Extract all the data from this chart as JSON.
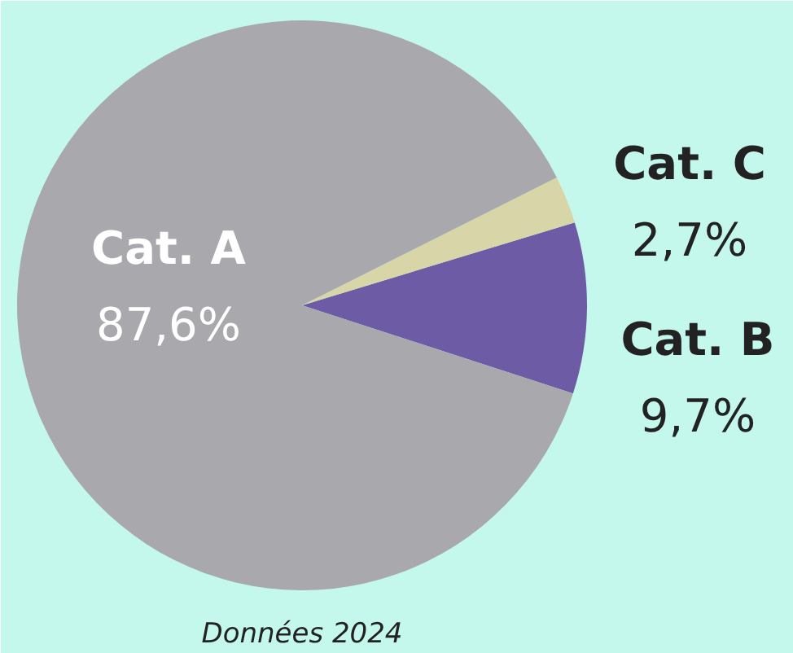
{
  "chart_data": {
    "type": "pie",
    "categories": [
      "Cat. B",
      "Cat. C",
      "Cat. A"
    ],
    "values": [
      9.7,
      2.7,
      87.6
    ],
    "value_labels": [
      "9,7%",
      "2,7%",
      "87,6%"
    ],
    "colors": [
      "#6e5ba6",
      "#d8d6a8",
      "#a8a8ad"
    ],
    "annotations": [
      "Données 2024"
    ]
  }
}
